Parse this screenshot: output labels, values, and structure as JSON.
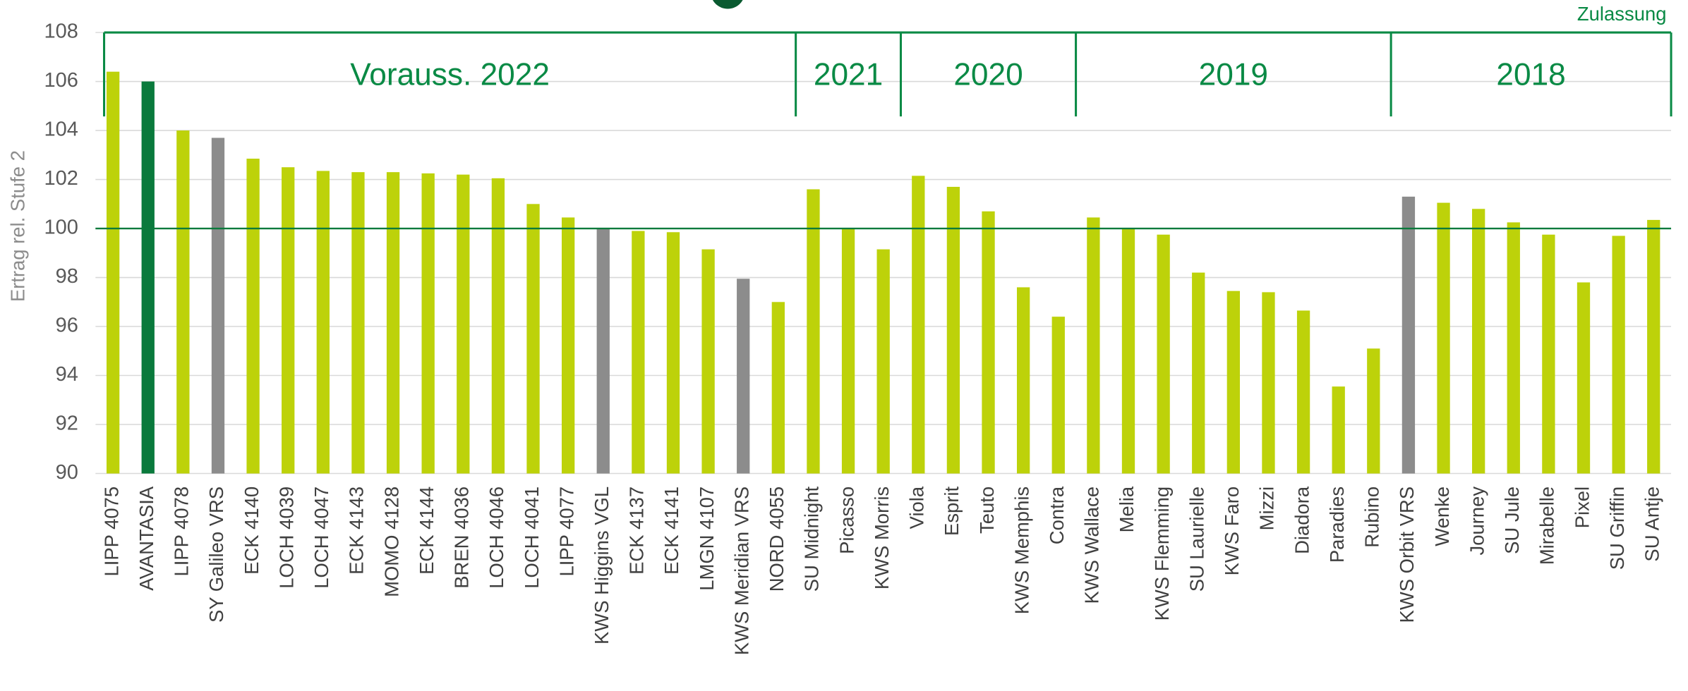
{
  "chart_data": {
    "type": "bar",
    "y_label": "Ertrag rel. Stufe 2",
    "legend_title": "Zulassung",
    "categories": [
      "LIPP 4075",
      "AVANTASIA",
      "LIPP 4078",
      "SY Galileo VRS",
      "ECK 4140",
      "LOCH 4039",
      "LOCH 4047",
      "ECK 4143",
      "MOMO 4128",
      "ECK 4144",
      "BREN 4036",
      "LOCH 4046",
      "LOCH 4041",
      "LIPP 4077",
      "KWS Higgins VGL",
      "ECK 4137",
      "ECK 4141",
      "LMGN 4107",
      "KWS Meridian VRS",
      "NORD 4055",
      "SU Midnight",
      "Picasso",
      "KWS Morris",
      "Viola",
      "Esprit",
      "Teuto",
      "KWS Memphis",
      "Contra",
      "KWS Wallace",
      "Melia",
      "KWS Flemming",
      "SU Laurielle",
      "KWS Faro",
      "Mizzi",
      "Diadora",
      "Paradies",
      "Rubino",
      "KWS Orbit VRS",
      "Wenke",
      "Journey",
      "SU Jule",
      "Mirabelle",
      "Pixel",
      "SU Griffin",
      "SU Antje"
    ],
    "values": [
      106.4,
      106.0,
      104.0,
      103.7,
      102.85,
      102.5,
      102.35,
      102.3,
      102.3,
      102.25,
      102.2,
      102.05,
      101.0,
      100.45,
      100.0,
      99.9,
      99.85,
      99.15,
      97.95,
      97.0,
      101.6,
      100.0,
      99.15,
      102.15,
      101.7,
      100.7,
      97.6,
      96.4,
      100.45,
      100.0,
      99.75,
      98.2,
      97.45,
      97.4,
      96.65,
      93.55,
      95.1,
      101.3,
      101.05,
      100.8,
      100.25,
      99.75,
      97.8,
      99.7,
      100.35
    ],
    "colors": [
      "#bdd20a",
      "#0a7a3c",
      "#bdd20a",
      "#8c8c8c",
      "#bdd20a",
      "#bdd20a",
      "#bdd20a",
      "#bdd20a",
      "#bdd20a",
      "#bdd20a",
      "#bdd20a",
      "#bdd20a",
      "#bdd20a",
      "#bdd20a",
      "#8c8c8c",
      "#bdd20a",
      "#bdd20a",
      "#bdd20a",
      "#8c8c8c",
      "#bdd20a",
      "#bdd20a",
      "#bdd20a",
      "#bdd20a",
      "#bdd20a",
      "#bdd20a",
      "#bdd20a",
      "#bdd20a",
      "#bdd20a",
      "#bdd20a",
      "#bdd20a",
      "#bdd20a",
      "#bdd20a",
      "#bdd20a",
      "#bdd20a",
      "#bdd20a",
      "#bdd20a",
      "#bdd20a",
      "#8c8c8c",
      "#bdd20a",
      "#bdd20a",
      "#bdd20a",
      "#bdd20a",
      "#bdd20a",
      "#bdd20a",
      "#bdd20a"
    ],
    "groups": [
      {
        "label": "Vorauss. 2022",
        "size": 20
      },
      {
        "label": "2021",
        "size": 3
      },
      {
        "label": "2020",
        "size": 5
      },
      {
        "label": "2019",
        "size": 9
      },
      {
        "label": "2018",
        "size": 8
      }
    ],
    "reference_line": 100,
    "ylim": [
      90,
      108
    ],
    "yticks": [
      90,
      92,
      94,
      96,
      98,
      100,
      102,
      104,
      106,
      108
    ],
    "grid": true
  }
}
